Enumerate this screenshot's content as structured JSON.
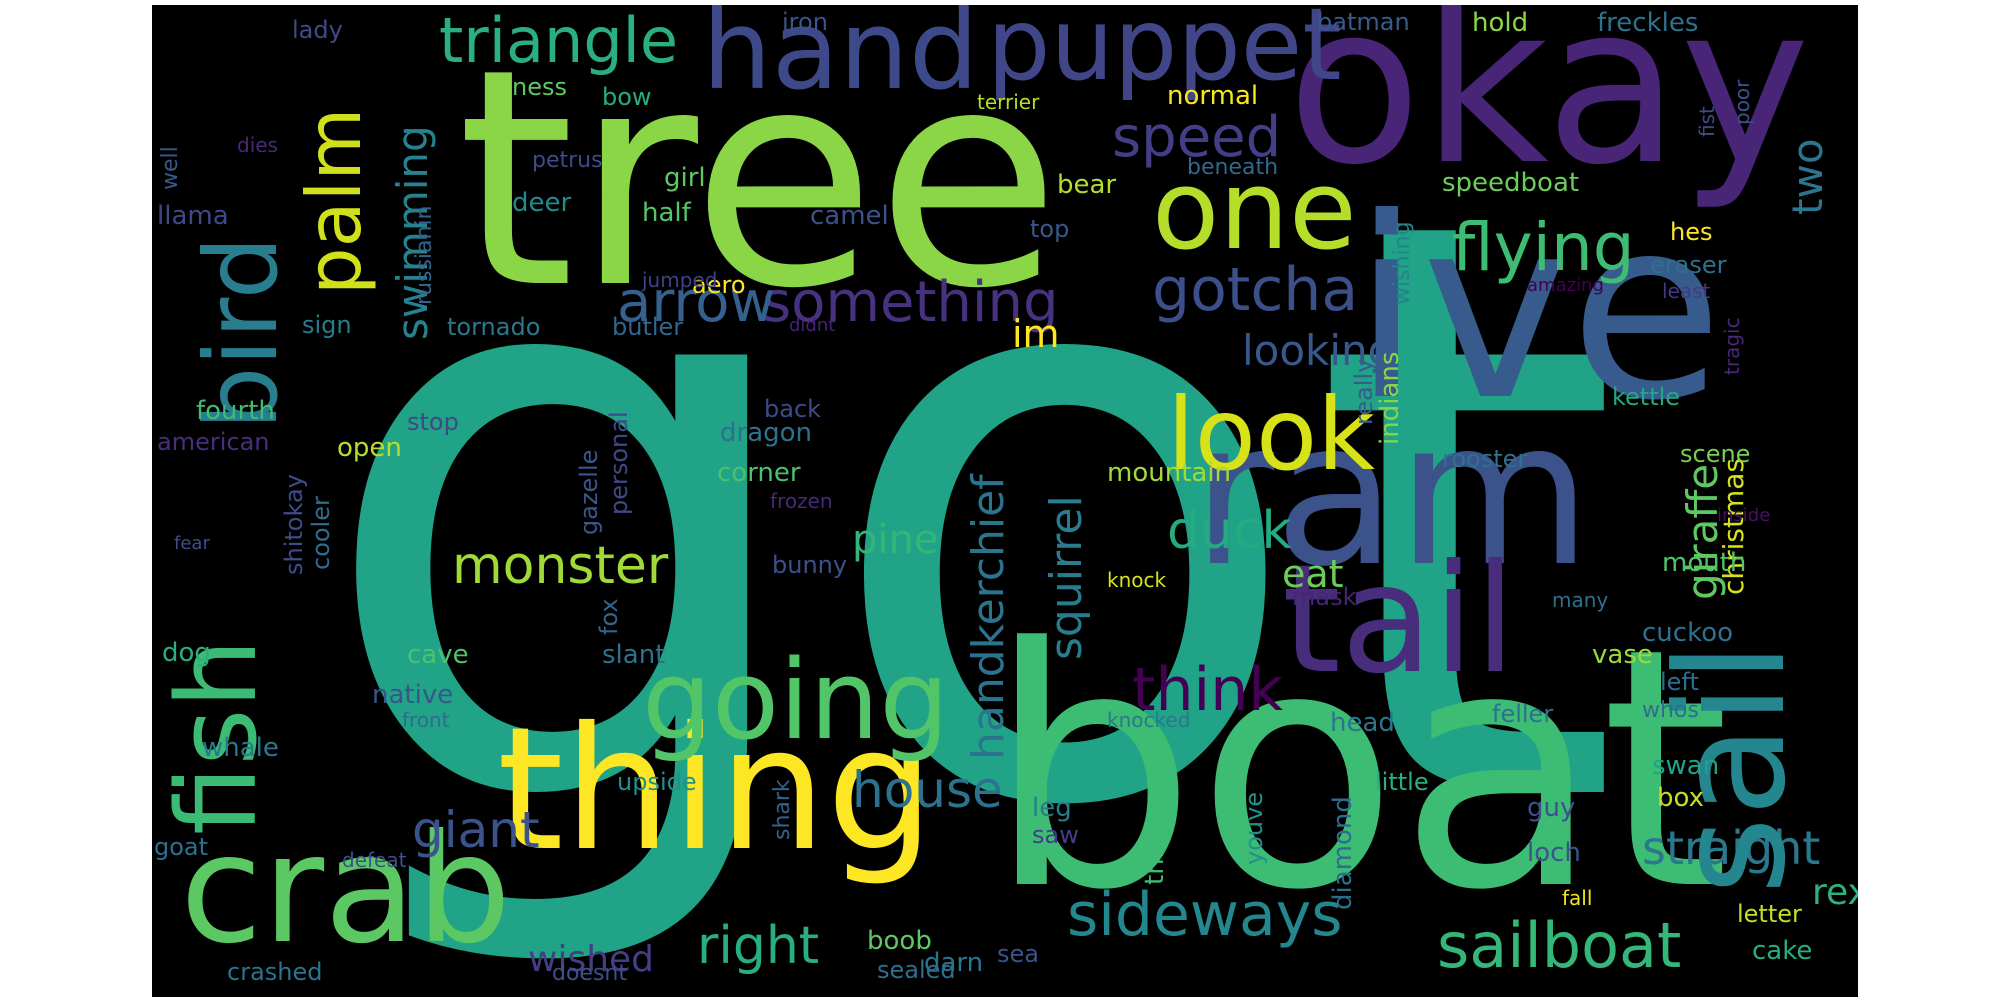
{
  "wordcloud": {
    "background": "#000000",
    "words": {
      "got": {
        "text": "got",
        "color": "#20a386"
      },
      "boat": {
        "text": "boat",
        "color": "#3dbc74"
      },
      "tree": {
        "text": "tree",
        "color": "#8bd646"
      },
      "okay": {
        "text": "okay",
        "color": "#482576"
      },
      "ive": {
        "text": "ive",
        "color": "#375b8d"
      },
      "thing": {
        "text": "thing",
        "color": "#fde725"
      },
      "ram": {
        "text": "ram",
        "color": "#3b528b"
      },
      "crab": {
        "text": "crab",
        "color": "#5cc863"
      },
      "tail": {
        "text": "tail",
        "color": "#472d7b"
      },
      "going": {
        "text": "going",
        "color": "#52c569"
      },
      "hand": {
        "text": "hand",
        "color": "#3e4989"
      },
      "one": {
        "text": "one",
        "color": "#b5de2b"
      },
      "puppet": {
        "text": "puppet",
        "color": "#404688"
      },
      "look": {
        "text": "look",
        "color": "#d8e219"
      },
      "sideways": {
        "text": "sideways",
        "color": "#23888e"
      },
      "sailboat": {
        "text": "sailboat",
        "color": "#35b779"
      },
      "flying": {
        "text": "flying",
        "color": "#3fbc73"
      },
      "gotcha": {
        "text": "gotcha",
        "color": "#3c4f8a"
      },
      "triangle": {
        "text": "triangle",
        "color": "#2ab07f"
      },
      "speed": {
        "text": "speed",
        "color": "#433e85"
      },
      "something": {
        "text": "something",
        "color": "#46327e"
      },
      "arrow": {
        "text": "arrow",
        "color": "#34618d"
      },
      "monster": {
        "text": "monster",
        "color": "#a0da39"
      },
      "duck": {
        "text": "duck",
        "color": "#25ab82"
      },
      "think": {
        "text": "think",
        "color": "#440154"
      },
      "house": {
        "text": "house",
        "color": "#2c728e"
      },
      "right": {
        "text": "right",
        "color": "#29af7f"
      },
      "giant": {
        "text": "giant",
        "color": "#3b528b"
      },
      "straight": {
        "text": "straight",
        "color": "#2a788e"
      },
      "looking": {
        "text": "looking",
        "color": "#38598c"
      },
      "pine": {
        "text": "pine",
        "color": "#32b67a"
      },
      "eat": {
        "text": "eat",
        "color": "#6ccd5a"
      },
      "im": {
        "text": "im",
        "color": "#fde725"
      },
      "wished": {
        "text": "wished",
        "color": "#433e85"
      },
      "rex": {
        "text": "rex",
        "color": "#2db27d"
      },
      "two": {
        "text": "two",
        "color": "#2a768e"
      },
      "fish": {
        "text": "fish",
        "color": "#3cbb75"
      },
      "bird": {
        "text": "bird",
        "color": "#287d8e"
      },
      "palm": {
        "text": "palm",
        "color": "#d0e11c"
      },
      "swimming": {
        "text": "swimming",
        "color": "#26828e"
      },
      "handkerchief": {
        "text": "handkerchief",
        "color": "#2b748e"
      },
      "squirrel": {
        "text": "squirrel",
        "color": "#297b8e"
      },
      "sail": {
        "text": "sail",
        "color": "#24868e"
      },
      "giraffe": {
        "text": "giraffe",
        "color": "#5ec962"
      },
      "christmas": {
        "text": "christmas",
        "color": "#d5e21a"
      },
      "lady": {
        "text": "lady",
        "color": "#3e4a89"
      },
      "iron": {
        "text": "iron",
        "color": "#3a548c"
      },
      "batman": {
        "text": "batman",
        "color": "#365c8d"
      },
      "hold": {
        "text": "hold",
        "color": "#8fd744"
      },
      "freckles": {
        "text": "freckles",
        "color": "#2c738e"
      },
      "bow": {
        "text": "bow",
        "color": "#26ad81"
      },
      "ness": {
        "text": "ness",
        "color": "#5ec962"
      },
      "normal": {
        "text": "normal",
        "color": "#f8e621"
      },
      "terrier": {
        "text": "terrier",
        "color": "#b8de29"
      },
      "well": {
        "text": "well",
        "color": "#375a8c"
      },
      "dies": {
        "text": "dies",
        "color": "#482878"
      },
      "petrus": {
        "text": "petrus",
        "color": "#3e4a89"
      },
      "beneath": {
        "text": "beneath",
        "color": "#31688e"
      },
      "speedboat": {
        "text": "speedboat",
        "color": "#6ccd5a"
      },
      "llama": {
        "text": "llama",
        "color": "#3f4889"
      },
      "girl": {
        "text": "girl",
        "color": "#5ec962"
      },
      "bear": {
        "text": "bear",
        "color": "#b5de2b"
      },
      "deer": {
        "text": "deer",
        "color": "#238a8d"
      },
      "half": {
        "text": "half",
        "color": "#54c568"
      },
      "camel": {
        "text": "camel",
        "color": "#3b528b"
      },
      "top": {
        "text": "top",
        "color": "#38598c"
      },
      "hes": {
        "text": "hes",
        "color": "#fde725"
      },
      "eraser": {
        "text": "eraser",
        "color": "#2d708e"
      },
      "russianin": {
        "text": "russianin",
        "color": "#33638d"
      },
      "aero": {
        "text": "aero",
        "color": "#fde725"
      },
      "jumped": {
        "text": "jumped",
        "color": "#424086"
      },
      "amazing": {
        "text": "amazing",
        "color": "#440154"
      },
      "least": {
        "text": "least",
        "color": "#443983"
      },
      "sign": {
        "text": "sign",
        "color": "#287c8e"
      },
      "tornado": {
        "text": "tornado",
        "color": "#2a788e"
      },
      "butler": {
        "text": "butler",
        "color": "#31678e"
      },
      "didnt": {
        "text": "didnt",
        "color": "#482173"
      },
      "wishing": {
        "text": "wishing",
        "color": "#25838e"
      },
      "tragic": {
        "text": "tragic",
        "color": "#482878"
      },
      "fourth": {
        "text": "fourth",
        "color": "#3fbc73"
      },
      "back": {
        "text": "back",
        "color": "#3e4a89"
      },
      "really": {
        "text": "really",
        "color": "#375b8d"
      },
      "kettle": {
        "text": "kettle",
        "color": "#22a884"
      },
      "american": {
        "text": "american",
        "color": "#472f7d"
      },
      "stop": {
        "text": "stop",
        "color": "#3e4989"
      },
      "dragon": {
        "text": "dragon",
        "color": "#2d718e"
      },
      "indians": {
        "text": "indians",
        "color": "#89d548"
      },
      "open": {
        "text": "open",
        "color": "#b8de29"
      },
      "gazelle": {
        "text": "gazelle",
        "color": "#3a548c"
      },
      "personal": {
        "text": "personal",
        "color": "#3f4889"
      },
      "corner": {
        "text": "corner",
        "color": "#4ac16d"
      },
      "rooster": {
        "text": "rooster",
        "color": "#2c738e"
      },
      "scene": {
        "text": "scene",
        "color": "#75d054"
      },
      "mountain": {
        "text": "mountain",
        "color": "#a2da37"
      },
      "frozen": {
        "text": "frozen",
        "color": "#482878"
      },
      "shitokay": {
        "text": "shitokay",
        "color": "#3e4c8a"
      },
      "cooler": {
        "text": "cooler",
        "color": "#2e6e8e"
      },
      "fear": {
        "text": "fear",
        "color": "#3d4e8a"
      },
      "inside": {
        "text": "inside",
        "color": "#471063"
      },
      "bunny": {
        "text": "bunny",
        "color": "#3c508b"
      },
      "knock": {
        "text": "knock",
        "color": "#d5e21a"
      },
      "mouth": {
        "text": "mouth",
        "color": "#52c569"
      },
      "fox": {
        "text": "fox",
        "color": "#32658e"
      },
      "mask": {
        "text": "mask",
        "color": "#482475"
      },
      "many": {
        "text": "many",
        "color": "#2e6f8e"
      },
      "dog": {
        "text": "dog",
        "color": "#2ab07f"
      },
      "cuckoo": {
        "text": "cuckoo",
        "color": "#2d718e"
      },
      "slant": {
        "text": "slant",
        "color": "#2c728e"
      },
      "vase": {
        "text": "vase",
        "color": "#9bd93c"
      },
      "cave": {
        "text": "cave",
        "color": "#4ec36b"
      },
      "left": {
        "text": "left",
        "color": "#2e6e8e"
      },
      "native": {
        "text": "native",
        "color": "#39568c"
      },
      "knocked": {
        "text": "knocked",
        "color": "#2a788e"
      },
      "head": {
        "text": "head",
        "color": "#2a768e"
      },
      "feller": {
        "text": "feller",
        "color": "#2c728e"
      },
      "whos": {
        "text": "whos",
        "color": "#2f6c8e"
      },
      "front": {
        "text": "front",
        "color": "#2f6c8e"
      },
      "whale": {
        "text": "whale",
        "color": "#2a788e"
      },
      "upside": {
        "text": "upside",
        "color": "#21918c"
      },
      "swan": {
        "text": "swan",
        "color": "#20a386"
      },
      "shark": {
        "text": "shark",
        "color": "#33638d"
      },
      "youve": {
        "text": "youve",
        "color": "#21918c"
      },
      "little": {
        "text": "little",
        "color": "#29af7f"
      },
      "box": {
        "text": "box",
        "color": "#c2df23"
      },
      "guy": {
        "text": "guy",
        "color": "#3b528b"
      },
      "leg": {
        "text": "leg",
        "color": "#287d8e"
      },
      "goat": {
        "text": "goat",
        "color": "#2d708e"
      },
      "defeat": {
        "text": "defeat",
        "color": "#3b528b"
      },
      "saw": {
        "text": "saw",
        "color": "#433e85"
      },
      "three": {
        "text": "three",
        "color": "#3fbc73"
      },
      "diamond": {
        "text": "diamond",
        "color": "#2e6d8e"
      },
      "loch": {
        "text": "loch",
        "color": "#3a548c"
      },
      "fall": {
        "text": "fall",
        "color": "#f1e51d"
      },
      "letter": {
        "text": "letter",
        "color": "#c0df25"
      },
      "sea": {
        "text": "sea",
        "color": "#3a548c"
      },
      "boob": {
        "text": "boob",
        "color": "#5ec962"
      },
      "darn": {
        "text": "darn",
        "color": "#2b758e"
      },
      "cake": {
        "text": "cake",
        "color": "#27ad81"
      },
      "crashed": {
        "text": "crashed",
        "color": "#2c738e"
      },
      "doesnt": {
        "text": "doesnt",
        "color": "#3b528b"
      },
      "sealed": {
        "text": "sealed",
        "color": "#2e6f8e"
      },
      "fist": {
        "text": "fist",
        "color": "#3e4a89"
      },
      "poor": {
        "text": "poor",
        "color": "#3b528b"
      }
    }
  }
}
